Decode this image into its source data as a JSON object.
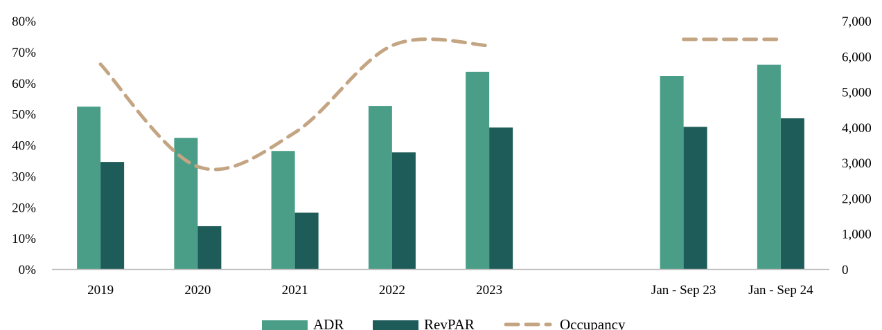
{
  "chart_data": {
    "type": "bar",
    "title": "",
    "xlabel": "",
    "ylabel": "",
    "categories": [
      "2019",
      "2020",
      "2021",
      "2022",
      "2023",
      "",
      "Jan - Sep 23",
      "Jan - Sep 24"
    ],
    "series": [
      {
        "name": "ADR",
        "type": "bar",
        "axis": "right",
        "color": "#4a9e87",
        "values": [
          4580,
          3700,
          3330,
          4600,
          5560,
          null,
          5440,
          5760
        ]
      },
      {
        "name": "RevPAR",
        "type": "bar",
        "axis": "right",
        "color": "#1d5c58",
        "values": [
          3020,
          1210,
          1590,
          3290,
          3990,
          null,
          4010,
          4250
        ]
      },
      {
        "name": "Occupancy",
        "type": "line",
        "style": "dashed",
        "axis": "left",
        "color": "#c4a583",
        "values": [
          0.66,
          0.33,
          0.44,
          0.72,
          0.72,
          null,
          0.74,
          0.74
        ]
      }
    ],
    "y_left": {
      "min": 0,
      "max": 0.8,
      "ticks": [
        "0%",
        "10%",
        "20%",
        "30%",
        "40%",
        "50%",
        "60%",
        "70%",
        "80%"
      ]
    },
    "y_right": {
      "min": 0,
      "max": 7000,
      "ticks": [
        "0",
        "1,000",
        "2,000",
        "3,000",
        "4,000",
        "5,000",
        "6,000",
        "7,000"
      ]
    },
    "grid": false,
    "legend": {
      "placement": "bottom",
      "entries": [
        "ADR",
        "RevPAR",
        "Occupancy"
      ]
    }
  }
}
